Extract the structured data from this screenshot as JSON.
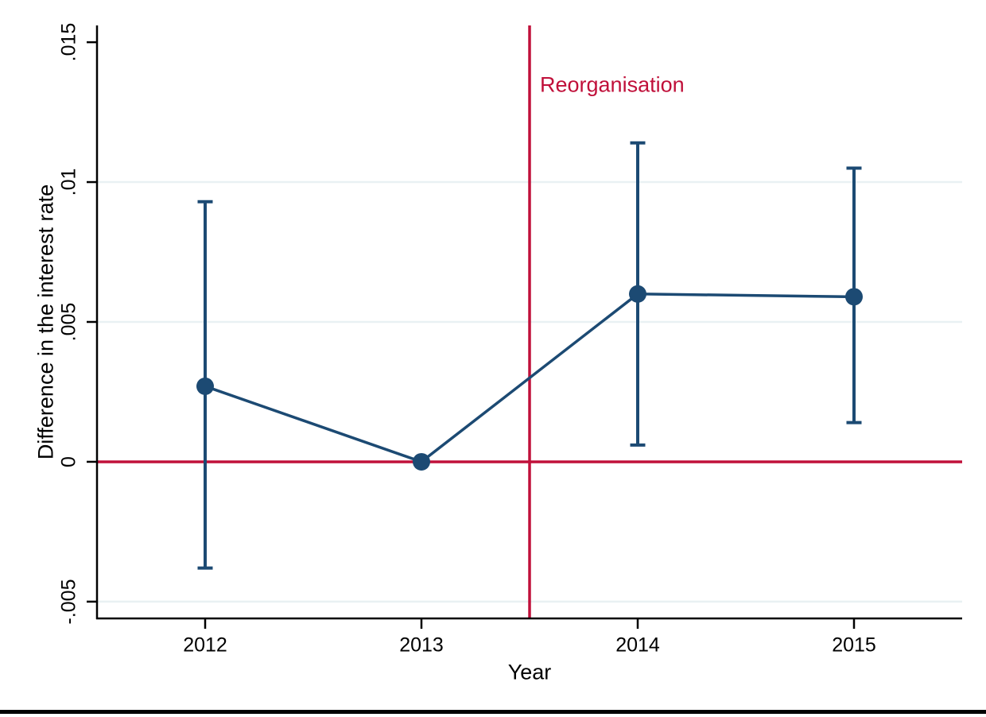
{
  "page": {
    "background": "#ffffff",
    "bottom_rule_color": "#000000"
  },
  "chart_data": {
    "type": "line",
    "title": "",
    "xlabel": "Year",
    "ylabel": "Difference in the interest rate",
    "x": [
      2012,
      2013,
      2014,
      2015
    ],
    "series": [
      {
        "name": "difference-in-interest-rate",
        "values": [
          0.0027,
          0,
          0.006,
          0.0059
        ],
        "ci_low": [
          -0.0038,
          null,
          0.0006,
          0.0014
        ],
        "ci_high": [
          0.0093,
          null,
          0.0114,
          0.0105
        ],
        "color": "#1c4a73"
      }
    ],
    "xlim": [
      2011.5,
      2015.5
    ],
    "ylim": [
      -0.0056,
      0.0156
    ],
    "xticks": [
      {
        "value": 2012,
        "label": "2012"
      },
      {
        "value": 2013,
        "label": "2013"
      },
      {
        "value": 2014,
        "label": "2014"
      },
      {
        "value": 2015,
        "label": "2015"
      }
    ],
    "yticks": [
      {
        "value": 0.015,
        "label": ".015"
      },
      {
        "value": 0.01,
        "label": ".01"
      },
      {
        "value": 0.005,
        "label": ".005"
      },
      {
        "value": 0,
        "label": "0"
      },
      {
        "value": -0.005,
        "label": "-.005"
      }
    ],
    "gridlines_y": [
      0.01,
      0.005,
      -0.005
    ],
    "grid_on": true,
    "grid_color": "#e9f1f3",
    "axis_color": "#000000",
    "legend_position": "none",
    "ytick_rotation": 90,
    "reference_lines": {
      "horizontal": {
        "y": 0,
        "color": "#c0103a"
      },
      "vertical": {
        "x": 2013.5,
        "color": "#c0103a",
        "label": "Reorganisation"
      }
    }
  }
}
